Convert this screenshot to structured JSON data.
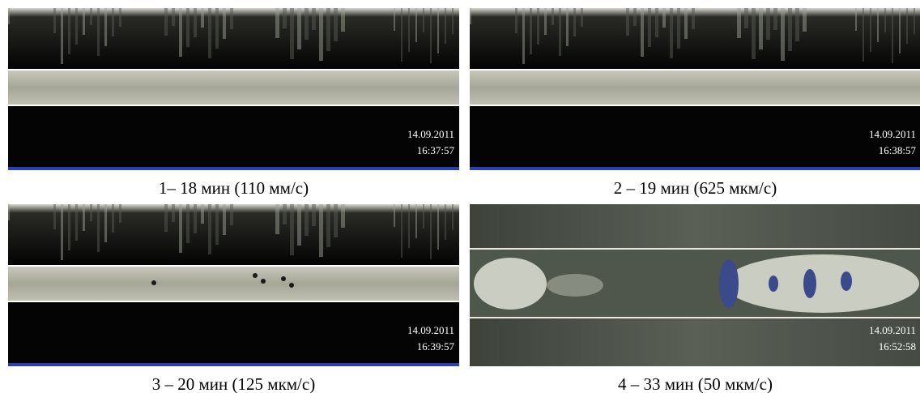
{
  "panels": [
    {
      "date": "14.09.2011",
      "time": "16:37:57",
      "caption": "1– 18 мин (110 мм/с)"
    },
    {
      "date": "14.09.2011",
      "time": "16:38:57",
      "caption": "2 – 19 мин (625 мкм/с)"
    },
    {
      "date": "14.09.2011",
      "time": "16:39:57",
      "caption": "3 – 20 мин (125 мкм/с)"
    },
    {
      "date": "14.09.2011",
      "time": "16:52:58",
      "caption": "4 – 33 мин (50 мкм/с)"
    }
  ]
}
